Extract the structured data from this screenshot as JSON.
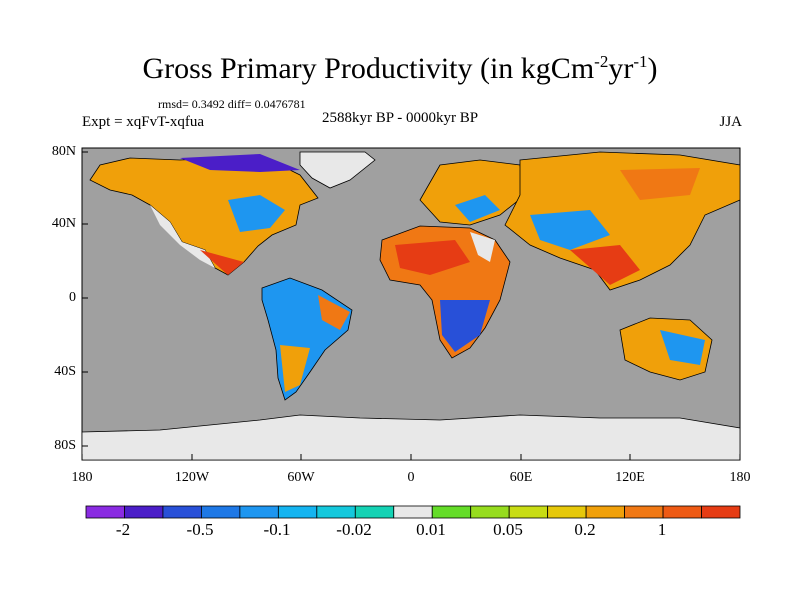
{
  "title": {
    "text": "Gross Primary Productivity (in kgCm",
    "sup1": "-2",
    "mid": "yr",
    "sup2": "-1",
    "end": ")"
  },
  "stats": "rmsd= 0.3492 diff= 0.0476781",
  "expt": "Expt = xqFvT-xqfua",
  "period": "2588kyr BP - 0000kyr BP",
  "season": "JJA",
  "map": {
    "lat_ticks": [
      "80N",
      "40N",
      "0",
      "40S",
      "80S"
    ],
    "lon_ticks": [
      "180",
      "120W",
      "60W",
      "0",
      "60E",
      "120E",
      "180"
    ],
    "ocean_color": "#a0a0a0",
    "ice_color": "#e8e8e8"
  },
  "colorbar": {
    "colors": [
      "#8a2be2",
      "#4b1ec8",
      "#2850d8",
      "#1e78e6",
      "#1e96f0",
      "#14b4f0",
      "#14c8dc",
      "#14d2b4",
      "#e8e8e8",
      "#64dc28",
      "#96dc1e",
      "#c8dc14",
      "#e6c80a",
      "#f0a00a",
      "#f07814",
      "#ee5a14",
      "#e63c14"
    ],
    "labels": [
      "-2",
      "-0.5",
      "-0.1",
      "-0.02",
      "0.01",
      "0.05",
      "0.2",
      "1"
    ]
  }
}
